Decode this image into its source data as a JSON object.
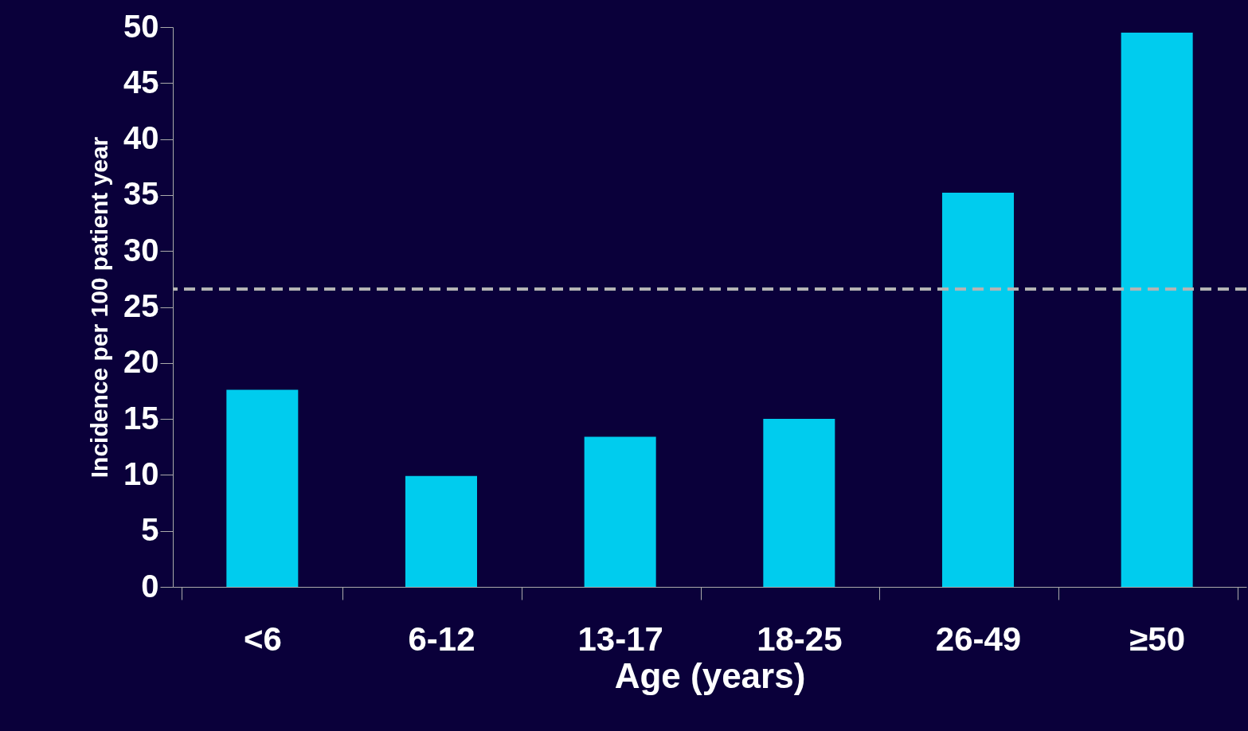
{
  "chart_data": {
    "type": "bar",
    "xlabel": "Age (years)",
    "ylabel": "Incidence per 100 patient year",
    "categories": [
      "<6",
      "6-12",
      "13-17",
      "18-25",
      "26-49",
      "≥50"
    ],
    "values": [
      17.6,
      9.9,
      13.4,
      15.0,
      35.2,
      49.5
    ],
    "color": "#00ccee",
    "ylim": [
      0,
      50
    ],
    "yticks": [
      0,
      5,
      10,
      15,
      20,
      25,
      30,
      35,
      40,
      45,
      50
    ],
    "grid": false,
    "ref_lines": [
      {
        "axis": "y",
        "value": 26.6,
        "color": "#b4b4b4",
        "line_style": "dashed"
      }
    ]
  }
}
